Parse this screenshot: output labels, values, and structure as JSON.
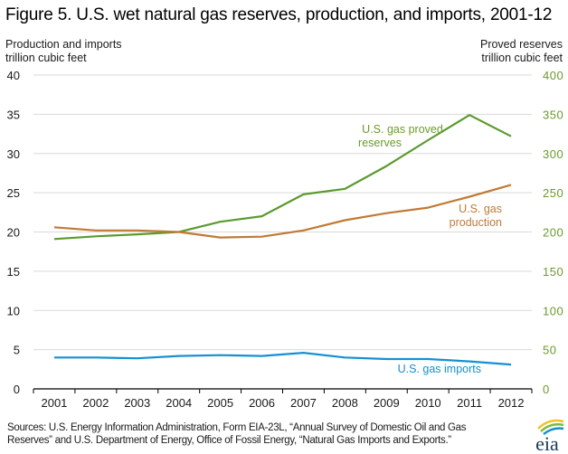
{
  "chart_data": {
    "type": "line",
    "title": "Figure 5. U.S. wet natural gas reserves, production, and imports, 2001-12",
    "left_axis": {
      "label_line1": "Production and imports",
      "label_line2": "trillion cubic feet",
      "ylim": [
        0,
        40
      ],
      "ticks": [
        "0",
        "5",
        "10",
        "15",
        "20",
        "25",
        "30",
        "35",
        "40"
      ],
      "tick_values": [
        0,
        5,
        10,
        15,
        20,
        25,
        30,
        35,
        40
      ]
    },
    "right_axis": {
      "label_line1": "Proved reserves",
      "label_line2": "trillion cubic feet",
      "ylim": [
        0,
        400
      ],
      "ticks": [
        "0",
        "50",
        "100",
        "150",
        "200",
        "250",
        "300",
        "350",
        "400"
      ],
      "tick_values": [
        0,
        50,
        100,
        150,
        200,
        250,
        300,
        350,
        400
      ],
      "color": "#6b9a2e"
    },
    "categories": [
      "2001",
      "2002",
      "2003",
      "2004",
      "2005",
      "2006",
      "2007",
      "2008",
      "2009",
      "2010",
      "2011",
      "2012"
    ],
    "grid": true,
    "series": [
      {
        "name": "U.S. gas proved reserves",
        "label_line1": "U.S. gas proved",
        "label_line2": "reserves",
        "axis": "right",
        "color": "#5a9a2f",
        "label_color": "#6b9a2e",
        "values": [
          191,
          194.5,
          197,
          200,
          213,
          220,
          248,
          255,
          284,
          317,
          349,
          322
        ]
      },
      {
        "name": "U.S. gas production",
        "label_line1": "U.S. gas",
        "label_line2": "production",
        "axis": "left",
        "color": "#c07a35",
        "label_color": "#c07a35",
        "values": [
          20.6,
          20.2,
          20.2,
          20.0,
          19.3,
          19.4,
          20.2,
          21.5,
          22.4,
          23.1,
          24.5,
          26.0
        ]
      },
      {
        "name": "U.S. gas imports",
        "label_line1": "U.S. gas imports",
        "label_line2": "",
        "axis": "left",
        "color": "#1591d0",
        "label_color": "#1591d0",
        "values": [
          4.0,
          4.0,
          3.9,
          4.2,
          4.3,
          4.2,
          4.6,
          4.0,
          3.8,
          3.8,
          3.5,
          3.1
        ]
      }
    ],
    "source_line1": "Sources: U.S. Energy Information Administration, Form EIA-23L, “Annual Survey of Domestic Oil and Gas",
    "source_line2": "Reserves” and U.S. Department of Energy, Office of Fossil Energy, “Natural Gas Imports and Exports.”"
  },
  "logo": {
    "text": "eia"
  }
}
